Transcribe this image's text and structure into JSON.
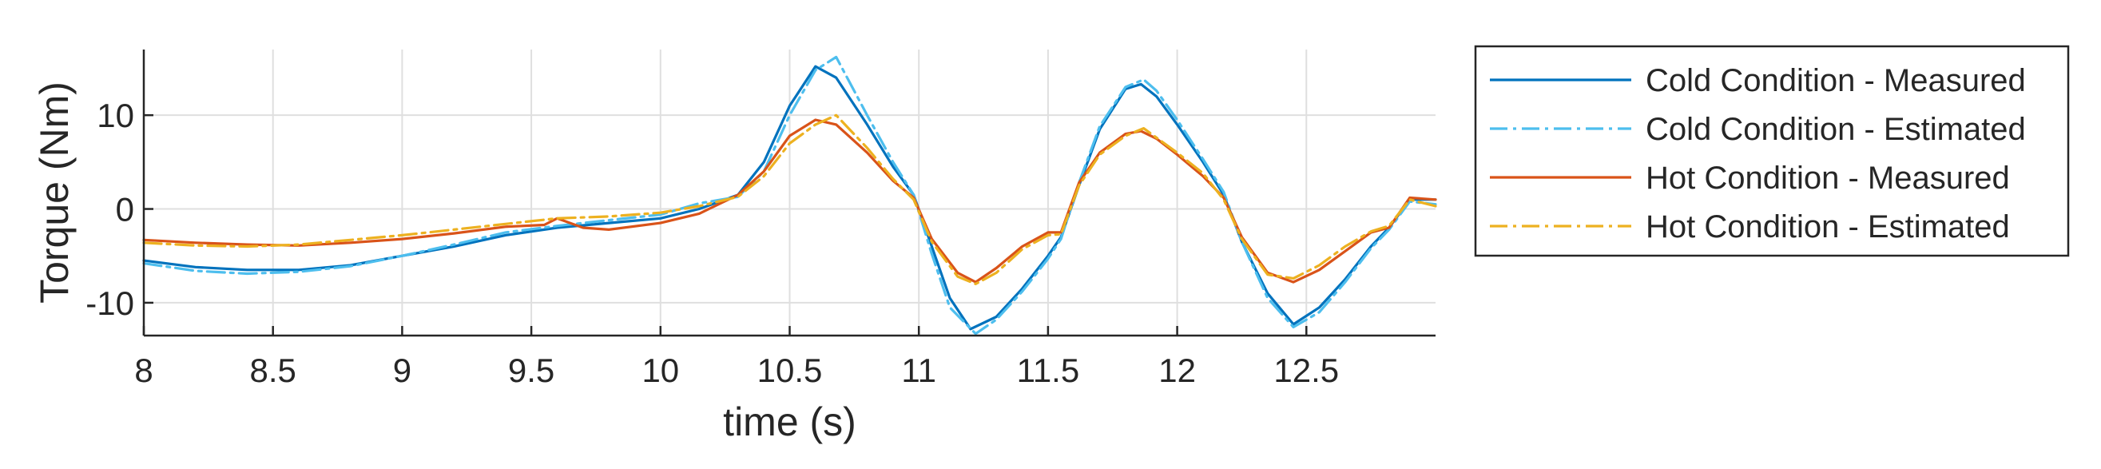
{
  "chart_data": {
    "type": "line",
    "title": "",
    "xlabel": "time (s)",
    "ylabel": "Torque (Nm)",
    "xlim": [
      8,
      13
    ],
    "ylim": [
      -13.5,
      17
    ],
    "xticks": [
      8,
      8.5,
      9,
      9.5,
      10,
      10.5,
      11,
      11.5,
      12,
      12.5
    ],
    "xtick_labels": [
      "8",
      "8.5",
      "9",
      "9.5",
      "10",
      "10.5",
      "11",
      "11.5",
      "12",
      "12.5"
    ],
    "yticks": [
      -10,
      0,
      10
    ],
    "ytick_labels": [
      "-10",
      "0",
      "10"
    ],
    "grid": true,
    "legend_position": "outside-right",
    "series": [
      {
        "name": "Cold Condition - Measured",
        "color": "#0072BD",
        "style": "solid",
        "x": [
          8.0,
          8.2,
          8.4,
          8.6,
          8.8,
          9.0,
          9.2,
          9.4,
          9.6,
          9.8,
          10.0,
          10.15,
          10.3,
          10.4,
          10.5,
          10.6,
          10.68,
          10.8,
          10.9,
          10.98,
          11.05,
          11.12,
          11.2,
          11.3,
          11.4,
          11.5,
          11.55,
          11.62,
          11.7,
          11.8,
          11.86,
          11.92,
          12.0,
          12.1,
          12.18,
          12.25,
          12.35,
          12.45,
          12.55,
          12.65,
          12.75,
          12.82,
          12.9,
          13.0
        ],
        "y": [
          -5.5,
          -6.2,
          -6.5,
          -6.5,
          -6.0,
          -5.0,
          -4.0,
          -2.8,
          -2.0,
          -1.5,
          -1.0,
          0.0,
          1.5,
          5.0,
          11.0,
          15.2,
          14.0,
          9.0,
          4.5,
          1.5,
          -4.0,
          -9.5,
          -12.8,
          -11.5,
          -8.5,
          -5.0,
          -3.0,
          2.5,
          8.5,
          12.8,
          13.3,
          12.0,
          9.0,
          5.0,
          1.5,
          -3.5,
          -9.0,
          -12.3,
          -10.5,
          -7.5,
          -4.0,
          -2.0,
          1.0,
          1.0
        ]
      },
      {
        "name": "Cold Condition - Estimated",
        "color": "#4DBEEE",
        "style": "dashdot",
        "x": [
          8.0,
          8.2,
          8.4,
          8.6,
          8.8,
          9.0,
          9.2,
          9.4,
          9.6,
          9.8,
          10.0,
          10.15,
          10.3,
          10.4,
          10.5,
          10.6,
          10.68,
          10.8,
          10.9,
          10.98,
          11.05,
          11.12,
          11.22,
          11.3,
          11.4,
          11.5,
          11.55,
          11.62,
          11.7,
          11.8,
          11.87,
          11.92,
          12.0,
          12.1,
          12.18,
          12.25,
          12.35,
          12.45,
          12.55,
          12.65,
          12.75,
          12.82,
          12.9,
          13.0
        ],
        "y": [
          -5.8,
          -6.6,
          -6.9,
          -6.7,
          -6.1,
          -5.0,
          -3.8,
          -2.5,
          -1.8,
          -1.2,
          -0.6,
          0.6,
          1.3,
          4.0,
          10.0,
          14.8,
          16.2,
          10.0,
          5.0,
          1.5,
          -4.8,
          -10.5,
          -13.3,
          -11.8,
          -8.8,
          -5.3,
          -3.2,
          2.8,
          8.8,
          13.0,
          13.8,
          12.6,
          9.5,
          5.3,
          1.8,
          -3.5,
          -9.5,
          -12.6,
          -11.0,
          -7.8,
          -4.2,
          -2.2,
          0.8,
          0.5
        ]
      },
      {
        "name": "Hot Condition - Measured",
        "color": "#D95319",
        "style": "solid",
        "x": [
          8.0,
          8.2,
          8.4,
          8.6,
          8.8,
          9.0,
          9.2,
          9.4,
          9.55,
          9.6,
          9.7,
          9.8,
          10.0,
          10.15,
          10.3,
          10.4,
          10.5,
          10.6,
          10.68,
          10.8,
          10.9,
          10.98,
          11.05,
          11.15,
          11.22,
          11.3,
          11.4,
          11.5,
          11.55,
          11.62,
          11.7,
          11.8,
          11.86,
          11.92,
          12.0,
          12.1,
          12.18,
          12.25,
          12.35,
          12.45,
          12.55,
          12.65,
          12.75,
          12.82,
          12.9,
          13.0
        ],
        "y": [
          -3.3,
          -3.6,
          -3.8,
          -3.9,
          -3.6,
          -3.2,
          -2.6,
          -1.9,
          -1.7,
          -1.0,
          -2.0,
          -2.2,
          -1.5,
          -0.5,
          1.5,
          4.0,
          7.8,
          9.5,
          9.0,
          6.0,
          3.0,
          1.2,
          -3.2,
          -6.8,
          -7.8,
          -6.3,
          -4.0,
          -2.5,
          -2.5,
          2.8,
          6.0,
          8.0,
          8.3,
          7.5,
          5.8,
          3.5,
          1.2,
          -3.0,
          -6.8,
          -7.8,
          -6.5,
          -4.5,
          -2.5,
          -2.0,
          1.2,
          1.0
        ]
      },
      {
        "name": "Hot Condition - Estimated",
        "color": "#EDB120",
        "style": "dashdot",
        "x": [
          8.0,
          8.2,
          8.4,
          8.6,
          8.8,
          9.0,
          9.2,
          9.4,
          9.6,
          9.8,
          10.0,
          10.15,
          10.3,
          10.4,
          10.5,
          10.6,
          10.68,
          10.8,
          10.9,
          10.98,
          11.05,
          11.15,
          11.22,
          11.3,
          11.4,
          11.5,
          11.55,
          11.62,
          11.7,
          11.8,
          11.87,
          11.92,
          12.0,
          12.1,
          12.18,
          12.25,
          12.35,
          12.45,
          12.55,
          12.65,
          12.75,
          12.82,
          12.9,
          13.0
        ],
        "y": [
          -3.6,
          -3.9,
          -4.0,
          -3.8,
          -3.3,
          -2.8,
          -2.2,
          -1.6,
          -1.0,
          -0.8,
          -0.4,
          0.3,
          1.3,
          3.5,
          7.0,
          9.0,
          10.0,
          6.5,
          3.2,
          1.0,
          -3.5,
          -7.2,
          -8.0,
          -6.8,
          -4.3,
          -2.8,
          -2.7,
          2.5,
          5.8,
          7.8,
          8.6,
          7.6,
          6.0,
          3.8,
          1.0,
          -3.2,
          -7.0,
          -7.4,
          -6.0,
          -4.0,
          -2.4,
          -1.8,
          1.0,
          0.3
        ]
      }
    ]
  }
}
